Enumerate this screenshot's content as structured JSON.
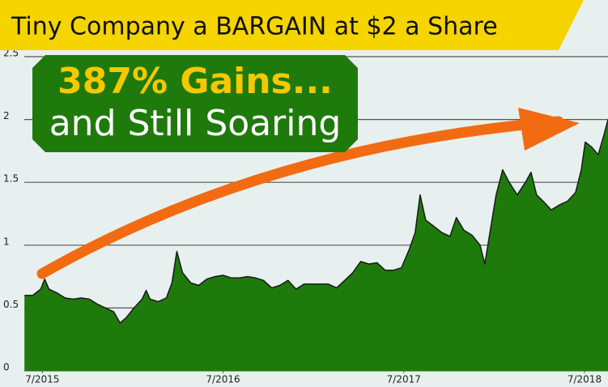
{
  "chart_data": {
    "type": "area",
    "title": "Tiny Company a BARGAIN at $2 a Share",
    "annotations": [
      "387% Gains...",
      "and Still Soaring"
    ],
    "color": "#1f7a0c",
    "line_color": "#1a1a1a",
    "grid": true,
    "xlim": [
      2015.4,
      2018.63
    ],
    "xticks": [
      {
        "value": 2015.5,
        "label": "7/2015"
      },
      {
        "value": 2016.5,
        "label": "7/2016"
      },
      {
        "value": 2017.5,
        "label": "7/2017"
      },
      {
        "value": 2018.5,
        "label": "7/2018"
      }
    ],
    "ylim": [
      0,
      2.5
    ],
    "yticks": [
      0,
      0.5,
      1,
      1.5,
      2,
      2.5
    ],
    "x": [
      2015.401,
      2015.446,
      2015.491,
      2015.513,
      2015.536,
      2015.581,
      2015.626,
      2015.67,
      2015.715,
      2015.76,
      2015.805,
      2015.85,
      2015.895,
      2015.93,
      2015.962,
      2016.007,
      2016.052,
      2016.074,
      2016.096,
      2016.141,
      2016.186,
      2016.217,
      2016.244,
      2016.276,
      2016.321,
      2016.365,
      2016.41,
      2016.455,
      2016.5,
      2016.545,
      2016.59,
      2016.635,
      2016.679,
      2016.724,
      2016.769,
      2016.814,
      2016.859,
      2016.904,
      2016.948,
      2016.993,
      2017.038,
      2017.083,
      2017.128,
      2017.173,
      2017.217,
      2017.262,
      2017.307,
      2017.352,
      2017.397,
      2017.442,
      2017.487,
      2017.531,
      2017.563,
      2017.59,
      2017.621,
      2017.666,
      2017.711,
      2017.756,
      2017.791,
      2017.832,
      2017.877,
      2017.922,
      2017.948,
      2017.971,
      2018.011,
      2018.047,
      2018.083,
      2018.128,
      2018.173,
      2018.204,
      2018.235,
      2018.271,
      2018.316,
      2018.361,
      2018.406,
      2018.451,
      2018.482,
      2018.504,
      2018.54,
      2018.576,
      2018.608,
      2018.63
    ],
    "values": [
      0.6,
      0.6,
      0.65,
      0.73,
      0.65,
      0.62,
      0.58,
      0.57,
      0.58,
      0.57,
      0.53,
      0.5,
      0.47,
      0.38,
      0.42,
      0.5,
      0.57,
      0.64,
      0.57,
      0.55,
      0.58,
      0.7,
      0.95,
      0.78,
      0.7,
      0.68,
      0.73,
      0.75,
      0.76,
      0.74,
      0.74,
      0.75,
      0.74,
      0.72,
      0.66,
      0.68,
      0.72,
      0.65,
      0.69,
      0.69,
      0.69,
      0.69,
      0.66,
      0.72,
      0.78,
      0.87,
      0.85,
      0.86,
      0.8,
      0.8,
      0.82,
      0.97,
      1.1,
      1.4,
      1.2,
      1.15,
      1.1,
      1.07,
      1.22,
      1.12,
      1.08,
      1.0,
      0.85,
      1.05,
      1.4,
      1.6,
      1.5,
      1.4,
      1.5,
      1.58,
      1.4,
      1.35,
      1.28,
      1.32,
      1.35,
      1.42,
      1.6,
      1.82,
      1.78,
      1.72,
      1.88,
      2.0
    ]
  }
}
